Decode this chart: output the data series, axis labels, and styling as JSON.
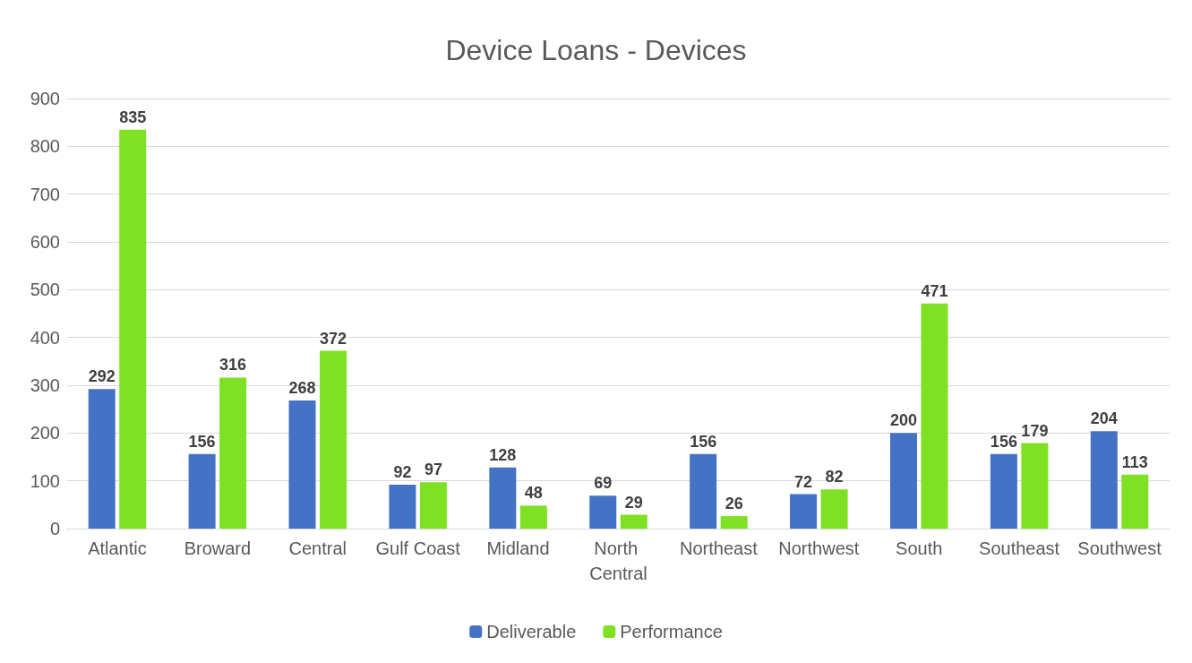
{
  "chart_data": {
    "type": "bar",
    "title": "Device Loans - Devices",
    "categories": [
      "Atlantic",
      "Broward",
      "Central",
      "Gulf Coast",
      "Midland",
      "North Central",
      "Northeast",
      "Northwest",
      "South",
      "Southeast",
      "Southwest"
    ],
    "series": [
      {
        "name": "Deliverable",
        "color": "#4472c4",
        "values": [
          292,
          156,
          268,
          92,
          128,
          69,
          156,
          72,
          200,
          156,
          204
        ]
      },
      {
        "name": "Performance",
        "color": "#7ee123",
        "values": [
          835,
          316,
          372,
          97,
          48,
          29,
          26,
          82,
          471,
          179,
          113
        ]
      }
    ],
    "ylim": [
      0,
      900
    ],
    "yticks": [
      0,
      100,
      200,
      300,
      400,
      500,
      600,
      700,
      800,
      900
    ],
    "grid": "y",
    "legend": "bottom",
    "data_labels": true
  }
}
